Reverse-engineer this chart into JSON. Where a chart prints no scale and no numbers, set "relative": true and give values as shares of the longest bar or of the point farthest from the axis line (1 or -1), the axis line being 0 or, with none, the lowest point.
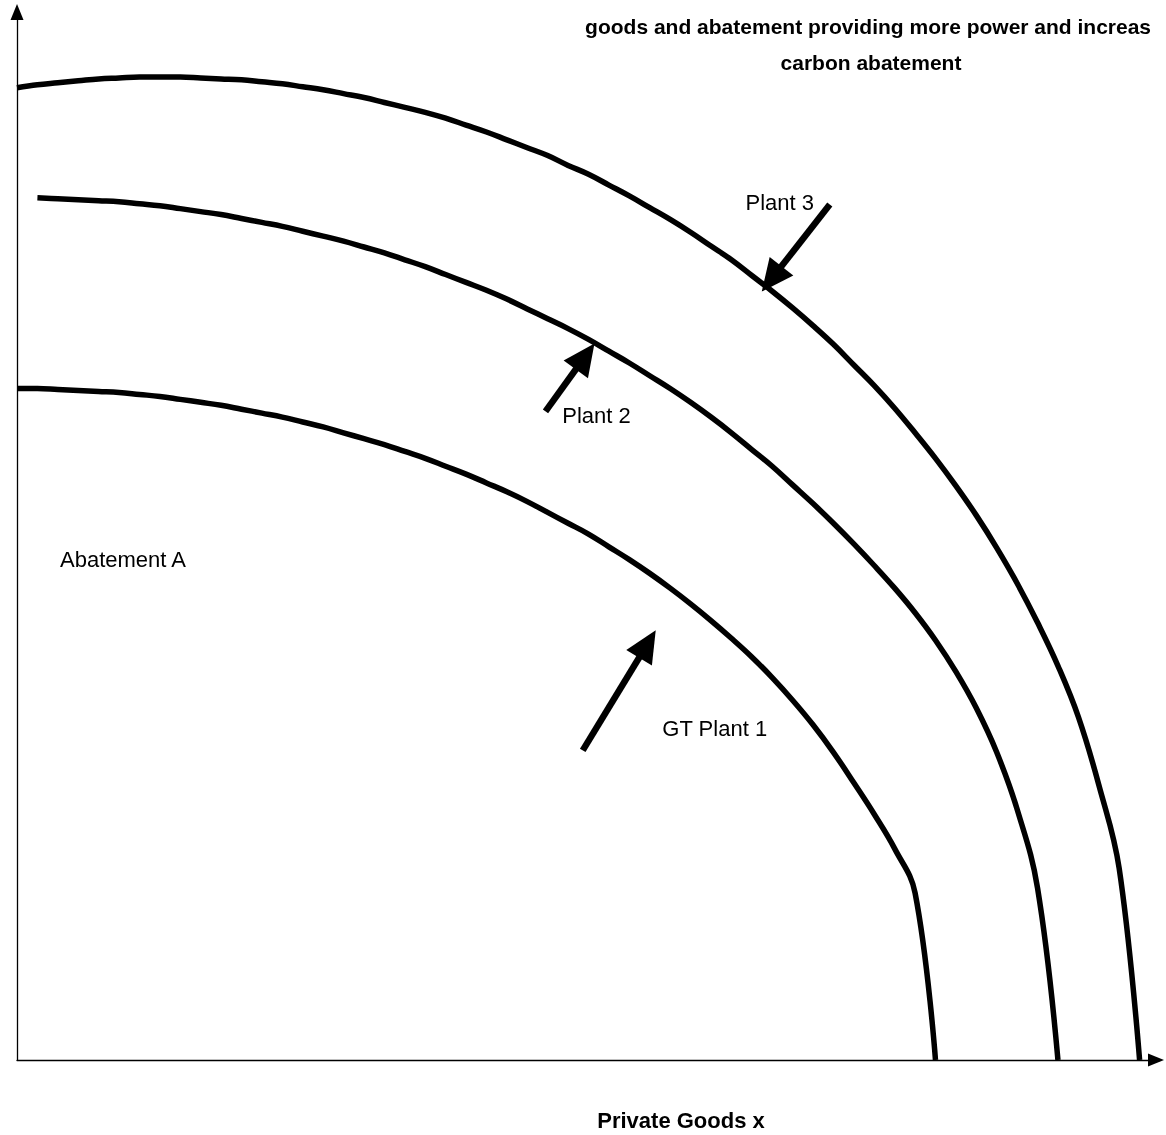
{
  "chart_data": {
    "type": "line",
    "relative": true,
    "title": "goods and abatement providing more power and increas carbon abatement",
    "xlabel": "Private Goods x",
    "ylabel": "Abatement A",
    "categories": [
      null,
      null,
      null,
      null,
      null,
      null,
      null,
      null,
      null,
      null,
      null,
      null,
      null,
      null,
      null,
      null,
      null,
      null,
      null,
      null,
      null,
      null,
      null,
      null,
      null,
      null,
      null,
      null,
      null,
      null,
      null,
      null,
      null,
      null,
      null,
      null,
      null,
      null,
      null,
      null,
      null,
      null,
      null,
      null,
      null,
      null,
      null,
      null,
      null,
      null,
      null,
      null,
      null,
      null,
      null,
      null,
      null
    ],
    "series": [
      {
        "name": "GT Plant 1",
        "color": "#000000",
        "values": [
          0.683,
          0.683,
          0.682,
          0.681,
          0.68,
          0.679,
          0.677,
          0.675,
          0.672,
          0.669,
          0.666,
          0.662,
          0.658,
          0.654,
          0.649,
          0.644,
          0.638,
          0.632,
          0.626,
          0.619,
          0.612,
          0.604,
          0.596,
          0.587,
          0.578,
          0.568,
          0.557,
          0.546,
          0.535,
          0.522,
          0.509,
          0.495,
          0.48,
          0.464,
          0.447,
          0.429,
          0.41,
          0.389,
          0.366,
          0.341,
          0.313,
          0.282,
          0.25,
          0.215,
          0.17,
          0,
          null,
          null,
          null,
          null,
          null,
          null,
          null,
          null,
          null,
          null,
          null
        ]
      },
      {
        "name": "Plant 2",
        "color": "#000000",
        "values": [
          null,
          0.877,
          0.876,
          0.875,
          0.874,
          0.873,
          0.871,
          0.869,
          0.866,
          0.863,
          0.86,
          0.856,
          0.852,
          0.848,
          0.843,
          0.838,
          0.833,
          0.827,
          0.821,
          0.814,
          0.807,
          0.799,
          0.791,
          0.783,
          0.774,
          0.764,
          0.754,
          0.744,
          0.733,
          0.721,
          0.709,
          0.696,
          0.683,
          0.669,
          0.654,
          0.638,
          0.621,
          0.604,
          0.585,
          0.566,
          0.546,
          0.525,
          0.503,
          0.48,
          0.455,
          0.427,
          0.395,
          0.358,
          0.313,
          0.255,
          0.175,
          0,
          null,
          null,
          null,
          null,
          null
        ]
      },
      {
        "name": "Plant 3",
        "color": "#000000",
        "values": [
          0.989,
          0.992,
          0.994,
          0.996,
          0.998,
          0.999,
          1,
          1,
          1,
          0.999,
          0.998,
          0.997,
          0.995,
          0.993,
          0.99,
          0.987,
          0.983,
          0.979,
          0.974,
          0.969,
          0.964,
          0.958,
          0.951,
          0.944,
          0.936,
          0.928,
          0.92,
          0.91,
          0.901,
          0.89,
          0.879,
          0.867,
          0.855,
          0.842,
          0.828,
          0.814,
          0.798,
          0.782,
          0.765,
          0.747,
          0.728,
          0.707,
          0.686,
          0.663,
          0.638,
          0.612,
          0.584,
          0.554,
          0.521,
          0.485,
          0.445,
          0.401,
          0.349,
          0.28,
          0.195,
          0,
          null
        ]
      }
    ],
    "marker": "none",
    "line_style": "solid"
  }
}
